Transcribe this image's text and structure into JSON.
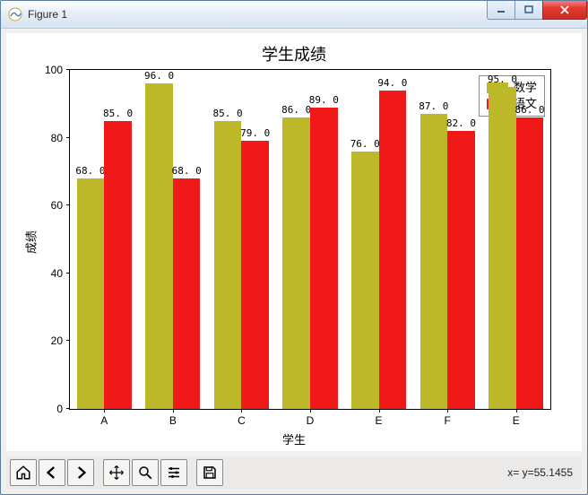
{
  "window": {
    "title": "Figure 1"
  },
  "chart": {
    "type": "bar",
    "title": "学生成绩",
    "title_fontsize": 18,
    "xlabel": "学生",
    "ylabel": "成绩",
    "label_fontsize": 13,
    "categories": [
      "A",
      "B",
      "C",
      "D",
      "E",
      "F",
      "E"
    ],
    "series": [
      {
        "name": "数学",
        "color": "#bdb72a",
        "values": [
          68.0,
          96.0,
          85.0,
          86.0,
          76.0,
          87.0,
          95.0
        ]
      },
      {
        "name": "语文",
        "color": "#f01818",
        "values": [
          85.0,
          68.0,
          79.0,
          89.0,
          94.0,
          82.0,
          86.0
        ]
      }
    ],
    "ylim": [
      0,
      100
    ],
    "yticks": [
      0,
      20,
      40,
      60,
      80,
      100
    ],
    "bar_width": 0.4,
    "background_color": "#ffffff",
    "value_label_fontsize": 11,
    "legend_position": "upper right"
  },
  "toolbar": {
    "buttons": [
      {
        "name": "home-icon"
      },
      {
        "name": "back-icon"
      },
      {
        "name": "forward-icon"
      },
      {
        "sep": true
      },
      {
        "name": "pan-icon"
      },
      {
        "name": "zoom-icon"
      },
      {
        "name": "configure-icon"
      },
      {
        "sep": true
      },
      {
        "name": "save-icon"
      }
    ],
    "coord_readout": "x= y=55.1455"
  }
}
